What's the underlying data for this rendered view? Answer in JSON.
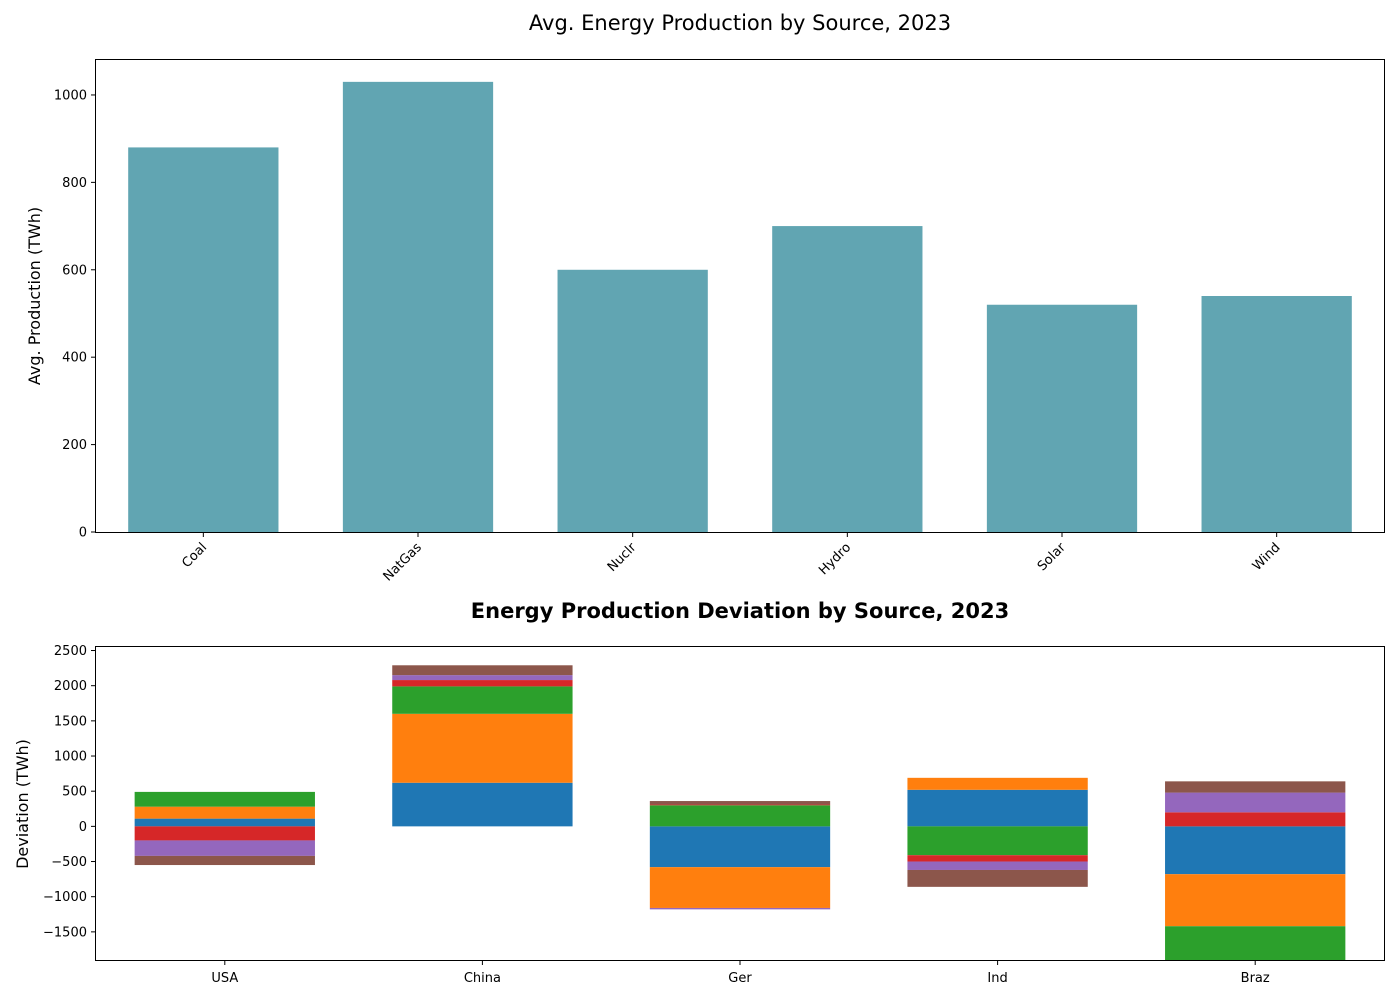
{
  "chart_data": [
    {
      "type": "bar",
      "title": "Avg. Energy Production by Source, 2023",
      "xlabel": "",
      "ylabel": "Avg. Production (TWh)",
      "categories": [
        "Coal",
        "NatGas",
        "Nuclr",
        "Hydro",
        "Solar",
        "Wind"
      ],
      "values": [
        880,
        1030,
        600,
        700,
        520,
        540
      ],
      "ylim": [
        0,
        1080
      ],
      "yticks": [
        0,
        200,
        400,
        600,
        800,
        1000
      ],
      "color": "#61a5b2",
      "grid": false
    },
    {
      "type": "bar",
      "stacked": true,
      "title": "Energy Production Deviation by Source, 2023",
      "xlabel": "",
      "ylabel": "Deviation (TWh)",
      "categories": [
        "USA",
        "China",
        "Ger",
        "Ind",
        "Braz"
      ],
      "ylim": [
        -1900,
        2550
      ],
      "yticks": [
        -1500,
        -1000,
        -500,
        0,
        500,
        1000,
        1500,
        2000,
        2500
      ],
      "series": [
        {
          "color": "#1f77b4",
          "values": [
            110,
            620,
            -580,
            520,
            -680
          ]
        },
        {
          "color": "#ff7f0e",
          "values": [
            170,
            980,
            -580,
            170,
            -740
          ]
        },
        {
          "color": "#2ca02c",
          "values": [
            210,
            390,
            300,
            -410,
            -480
          ]
        },
        {
          "color": "#d62728",
          "values": [
            -200,
            90,
            10,
            -90,
            200
          ]
        },
        {
          "color": "#9467bd",
          "values": [
            -220,
            70,
            -20,
            -120,
            280
          ]
        },
        {
          "color": "#8c564b",
          "values": [
            -130,
            140,
            50,
            -240,
            160
          ]
        }
      ],
      "grid": false
    }
  ]
}
